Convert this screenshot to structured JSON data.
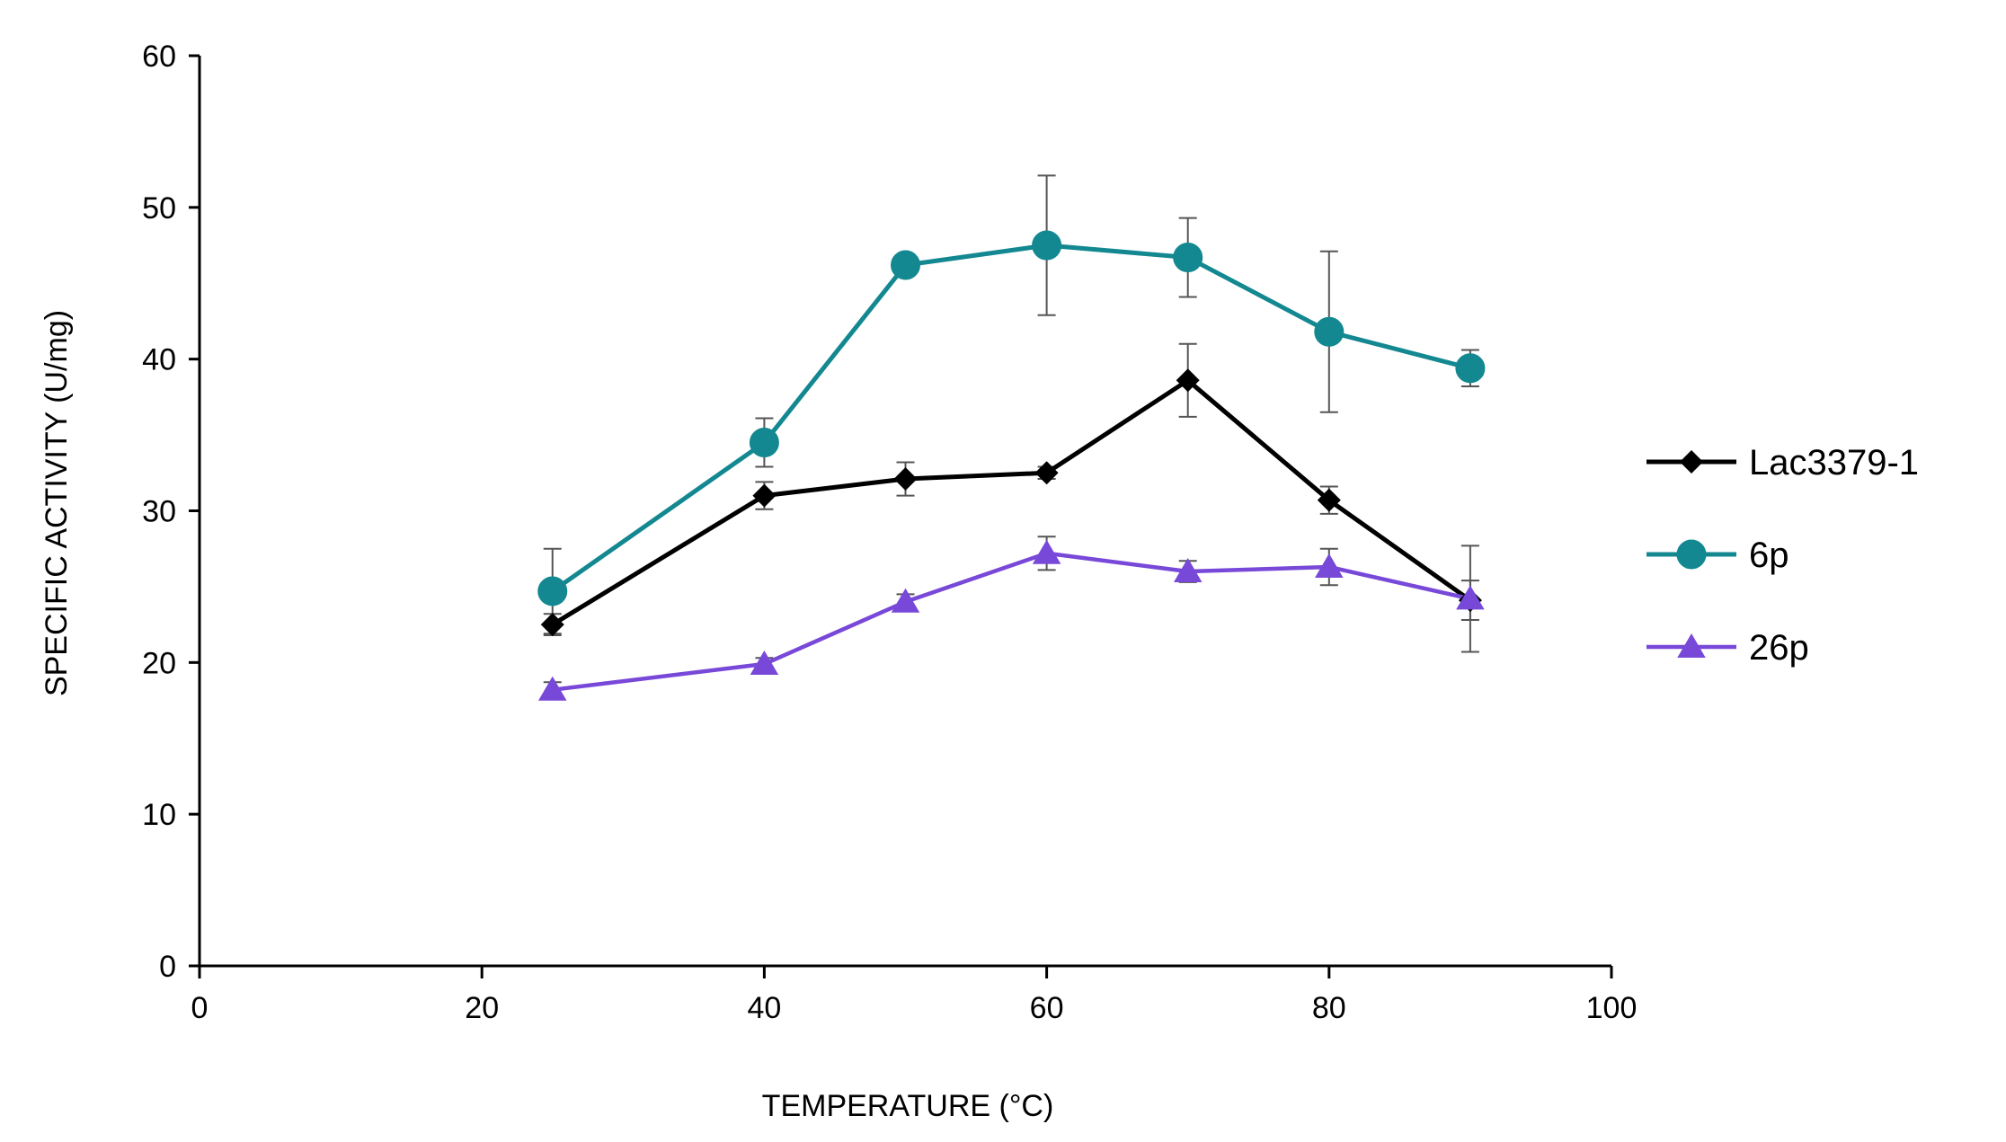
{
  "chart_data": {
    "type": "line",
    "title": "",
    "xlabel": "TEMPERATURE (°C)",
    "ylabel": "SPECIFIC ACTIVITY (U/mg)",
    "xlim": [
      0,
      100
    ],
    "ylim": [
      0,
      60
    ],
    "xticks": [
      0,
      20,
      40,
      60,
      80,
      100
    ],
    "yticks": [
      0,
      10,
      20,
      30,
      40,
      50,
      60
    ],
    "xtick_labels": [
      "0",
      "20",
      "40",
      "60",
      "80",
      "100"
    ],
    "ytick_labels": [
      "0",
      "10",
      "20",
      "30",
      "40",
      "50",
      "60"
    ],
    "grid": false,
    "legend_position": "right",
    "x": [
      25,
      40,
      50,
      60,
      70,
      80,
      90
    ],
    "series": [
      {
        "name": "Lac3379-1",
        "color": "#000000",
        "marker": "diamond",
        "values": [
          22.5,
          31.0,
          32.1,
          32.5,
          38.6,
          30.7,
          24.1
        ],
        "errors": [
          0.7,
          0.9,
          1.1,
          0.4,
          2.4,
          0.9,
          1.3
        ]
      },
      {
        "name": "6p",
        "color": "#138891",
        "marker": "circle",
        "values": [
          24.7,
          34.5,
          46.2,
          47.5,
          46.7,
          41.8,
          39.4
        ],
        "errors": [
          2.8,
          1.6,
          0.3,
          4.6,
          2.6,
          5.3,
          1.2
        ]
      },
      {
        "name": "26p",
        "color": "#7848d8",
        "marker": "triangle",
        "values": [
          18.2,
          19.9,
          24.0,
          27.2,
          26.0,
          26.3,
          24.2
        ],
        "errors": [
          0.5,
          0.4,
          0.5,
          1.1,
          0.7,
          1.2,
          3.5
        ]
      }
    ]
  }
}
